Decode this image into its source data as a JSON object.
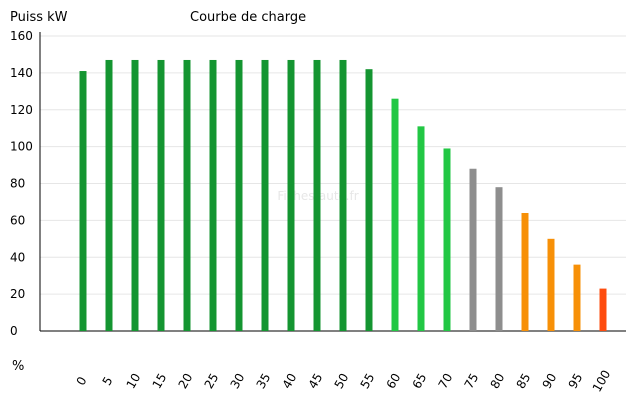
{
  "chart_data": {
    "type": "bar",
    "title": "Courbe de charge",
    "ylabel": "Puiss kW",
    "xlabel": "%",
    "watermark": "Fiches-auto.fr",
    "ylim": [
      0,
      160
    ],
    "yticks": [
      0,
      20,
      40,
      60,
      80,
      100,
      120,
      140,
      160
    ],
    "grid": true,
    "legend": "none",
    "categories": [
      "0",
      "5",
      "10",
      "15",
      "20",
      "25",
      "30",
      "35",
      "40",
      "45",
      "50",
      "55",
      "60",
      "65",
      "70",
      "75",
      "80",
      "85",
      "90",
      "95",
      "100"
    ],
    "values": [
      141,
      147,
      147,
      147,
      147,
      147,
      147,
      147,
      147,
      147,
      147,
      142,
      126,
      111,
      99,
      88,
      78,
      64,
      50,
      36,
      23
    ],
    "bar_colors": [
      "#149531",
      "#149531",
      "#149531",
      "#149531",
      "#149531",
      "#149531",
      "#149531",
      "#149531",
      "#149531",
      "#149531",
      "#149531",
      "#149531",
      "#22c744",
      "#22c744",
      "#22c744",
      "#8e8e8e",
      "#8e8e8e",
      "#f79007",
      "#f79007",
      "#f79007",
      "#fe4c0e"
    ]
  }
}
